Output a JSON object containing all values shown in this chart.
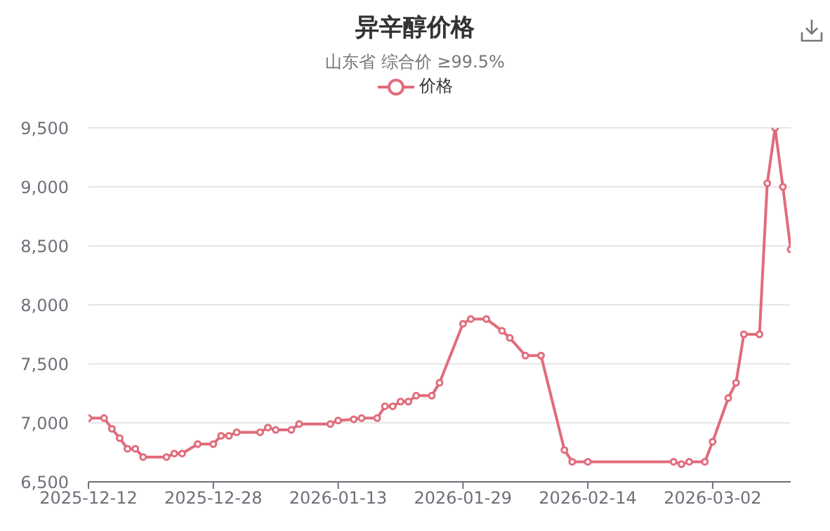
{
  "chart_data": {
    "type": "line",
    "title": "异辛醇价格",
    "subtitle": "山东省 综合价 ≥99.5%",
    "x": [
      "2025-12-12",
      "2025-12-14",
      "2025-12-15",
      "2025-12-16",
      "2025-12-17",
      "2025-12-18",
      "2025-12-19",
      "2025-12-22",
      "2025-12-23",
      "2025-12-24",
      "2025-12-26",
      "2025-12-28",
      "2025-12-29",
      "2025-12-30",
      "2025-12-31",
      "2026-01-03",
      "2026-01-04",
      "2026-01-05",
      "2026-01-07",
      "2026-01-08",
      "2026-01-12",
      "2026-01-13",
      "2026-01-15",
      "2026-01-16",
      "2026-01-18",
      "2026-01-19",
      "2026-01-20",
      "2026-01-21",
      "2026-01-22",
      "2026-01-23",
      "2026-01-25",
      "2026-01-26",
      "2026-01-29",
      "2026-01-30",
      "2026-02-01",
      "2026-02-03",
      "2026-02-04",
      "2026-02-06",
      "2026-02-08",
      "2026-02-11",
      "2026-02-12",
      "2026-02-14",
      "2026-02-25",
      "2026-02-26",
      "2026-02-27",
      "2026-03-01",
      "2026-03-02",
      "2026-03-04",
      "2026-03-05",
      "2026-03-06",
      "2026-03-08",
      "2026-03-09",
      "2026-03-10",
      "2026-03-11",
      "2026-03-12"
    ],
    "series": [
      {
        "name": "价格",
        "color": "#e06c7b",
        "values": [
          7040,
          7040,
          6950,
          6870,
          6780,
          6780,
          6710,
          6710,
          6740,
          6740,
          6820,
          6820,
          6890,
          6890,
          6920,
          6920,
          6960,
          6940,
          6940,
          6990,
          6990,
          7020,
          7030,
          7040,
          7040,
          7140,
          7140,
          7180,
          7180,
          7230,
          7230,
          7340,
          7840,
          7880,
          7880,
          7780,
          7720,
          7570,
          7570,
          6770,
          6670,
          6670,
          6670,
          6650,
          6670,
          6670,
          6840,
          7210,
          7340,
          7750,
          7750,
          9030,
          9500,
          9000,
          8470
        ]
      }
    ],
    "xlim": [
      "2025-12-12",
      "2026-03-12"
    ],
    "xticks": [
      "2025-12-12",
      "2025-12-28",
      "2026-01-13",
      "2026-01-29",
      "2026-02-14",
      "2026-03-02"
    ],
    "ylim": [
      6500,
      9500
    ],
    "yticks": [
      {
        "value": 6500,
        "label": "6,500"
      },
      {
        "value": 7000,
        "label": "7,000"
      },
      {
        "value": 7500,
        "label": "7,500"
      },
      {
        "value": 8000,
        "label": "8,000"
      },
      {
        "value": 8500,
        "label": "8,500"
      },
      {
        "value": 9000,
        "label": "9,000"
      },
      {
        "value": 9500,
        "label": "9,500"
      }
    ],
    "grid": "y",
    "legend": "top",
    "marker": "circle",
    "line_style": "solid"
  }
}
